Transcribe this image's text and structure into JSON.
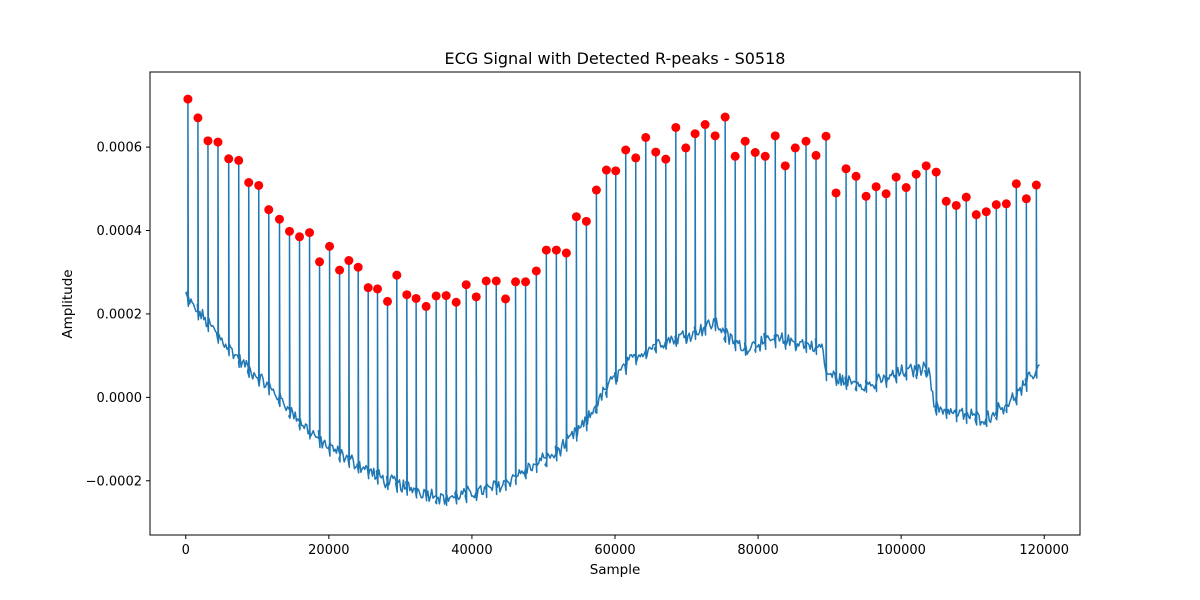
{
  "chart_data": {
    "type": "line",
    "title": "ECG Signal with Detected R-peaks - S0518",
    "xlabel": "Sample",
    "ylabel": "Amplitude",
    "xlim": [
      -5000,
      125000
    ],
    "ylim": [
      -0.00033,
      0.00078
    ],
    "xticks": [
      0,
      20000,
      40000,
      60000,
      80000,
      100000,
      120000
    ],
    "xtick_labels": [
      "0",
      "20000",
      "40000",
      "60000",
      "80000",
      "100000",
      "120000"
    ],
    "yticks": [
      -0.0002,
      0.0,
      0.0002,
      0.0004,
      0.0006
    ],
    "ytick_labels": [
      "−0.0002",
      "0.0000",
      "0.0002",
      "0.0004",
      "0.0006"
    ],
    "grid": false,
    "colors": {
      "signal": "#1f77b4",
      "peaks": "#ff0000"
    },
    "baseline": {
      "x": [
        0,
        500,
        2000,
        5000,
        8000,
        12000,
        16000,
        20000,
        24000,
        28000,
        32000,
        36000,
        40000,
        44000,
        48000,
        52000,
        56000,
        58000,
        60000,
        63000,
        66000,
        70000,
        74000,
        76000,
        78000,
        82000,
        86000,
        89000,
        89500,
        92000,
        96000,
        100000,
        104000,
        104500,
        108000,
        112000,
        116000,
        119500
      ],
      "y": [
        0.00025,
        0.00023,
        0.0002,
        0.00014,
        8e-05,
        2e-05,
        -6e-05,
        -0.00012,
        -0.00016,
        -0.0002,
        -0.00022,
        -0.00024,
        -0.00023,
        -0.00021,
        -0.00017,
        -0.00013,
        -6e-05,
        0.0,
        5e-05,
        0.0001,
        0.00013,
        0.00015,
        0.00018,
        0.00014,
        0.00012,
        0.00014,
        0.00013,
        0.00012,
        6e-05,
        4e-05,
        3e-05,
        6e-05,
        7e-05,
        -2e-05,
        -4e-05,
        -5e-05,
        0.0,
        8e-05
      ]
    },
    "series": [
      {
        "type": "scatter",
        "x": [
          300,
          1700,
          3100,
          4500,
          6000,
          7400,
          8800,
          10200,
          11600,
          13100,
          14500,
          15900,
          17300,
          18700,
          20100,
          21500,
          22800,
          24100,
          25500,
          26800,
          28200,
          29500,
          30900,
          32200,
          33600,
          35000,
          36400,
          37800,
          39200,
          40600,
          42000,
          43400,
          44700,
          46100,
          47500,
          49000,
          50400,
          51800,
          53200,
          54600,
          56000,
          57400,
          58800,
          60100,
          61500,
          62900,
          64300,
          65700,
          67100,
          68500,
          69900,
          71200,
          72600,
          74000,
          75400,
          76800,
          78200,
          79600,
          81000,
          82400,
          83800,
          85200,
          86700,
          88100,
          89500,
          90900,
          92300,
          93700,
          95100,
          96500,
          97900,
          99300,
          100700,
          102100,
          103500,
          104900,
          106300,
          107700,
          109100,
          110500,
          111900,
          113300,
          114700,
          116100,
          117500,
          118900
        ],
        "y": [
          0.000715,
          0.00067,
          0.000615,
          0.000612,
          0.000572,
          0.000568,
          0.000515,
          0.000508,
          0.00045,
          0.000427,
          0.000398,
          0.000385,
          0.000395,
          0.000325,
          0.000362,
          0.000305,
          0.000328,
          0.000312,
          0.000263,
          0.00026,
          0.00023,
          0.000293,
          0.000246,
          0.000237,
          0.000218,
          0.000243,
          0.000244,
          0.000228,
          0.00027,
          0.000241,
          0.000279,
          0.000279,
          0.000236,
          0.000277,
          0.000277,
          0.000303,
          0.000353,
          0.000353,
          0.000346,
          0.000433,
          0.000422,
          0.000497,
          0.000545,
          0.000543,
          0.000593,
          0.000574,
          0.000623,
          0.000588,
          0.000571,
          0.000647,
          0.000598,
          0.000632,
          0.000654,
          0.000627,
          0.000672,
          0.000578,
          0.000614,
          0.000587,
          0.000578,
          0.000627,
          0.000555,
          0.000598,
          0.000614,
          0.00058,
          0.000626,
          0.00049,
          0.000548,
          0.00053,
          0.000482,
          0.000505,
          0.000488,
          0.000528,
          0.000503,
          0.000535,
          0.000555,
          0.00054,
          0.00047,
          0.00046,
          0.00048,
          0.000438,
          0.000445,
          0.000462,
          0.000464,
          0.000512,
          0.000476,
          0.000509
        ]
      }
    ]
  }
}
